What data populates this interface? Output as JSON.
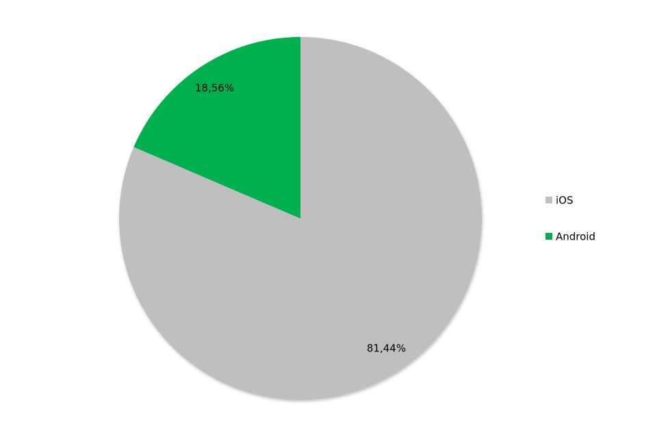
{
  "chart_data": {
    "type": "pie",
    "categories": [
      "iOS",
      "Android"
    ],
    "values": [
      81.44,
      18.56
    ],
    "value_labels": [
      "81,44%",
      "18,56%"
    ],
    "colors": [
      "#bfbfbf",
      "#00b050"
    ],
    "legend": "right"
  }
}
